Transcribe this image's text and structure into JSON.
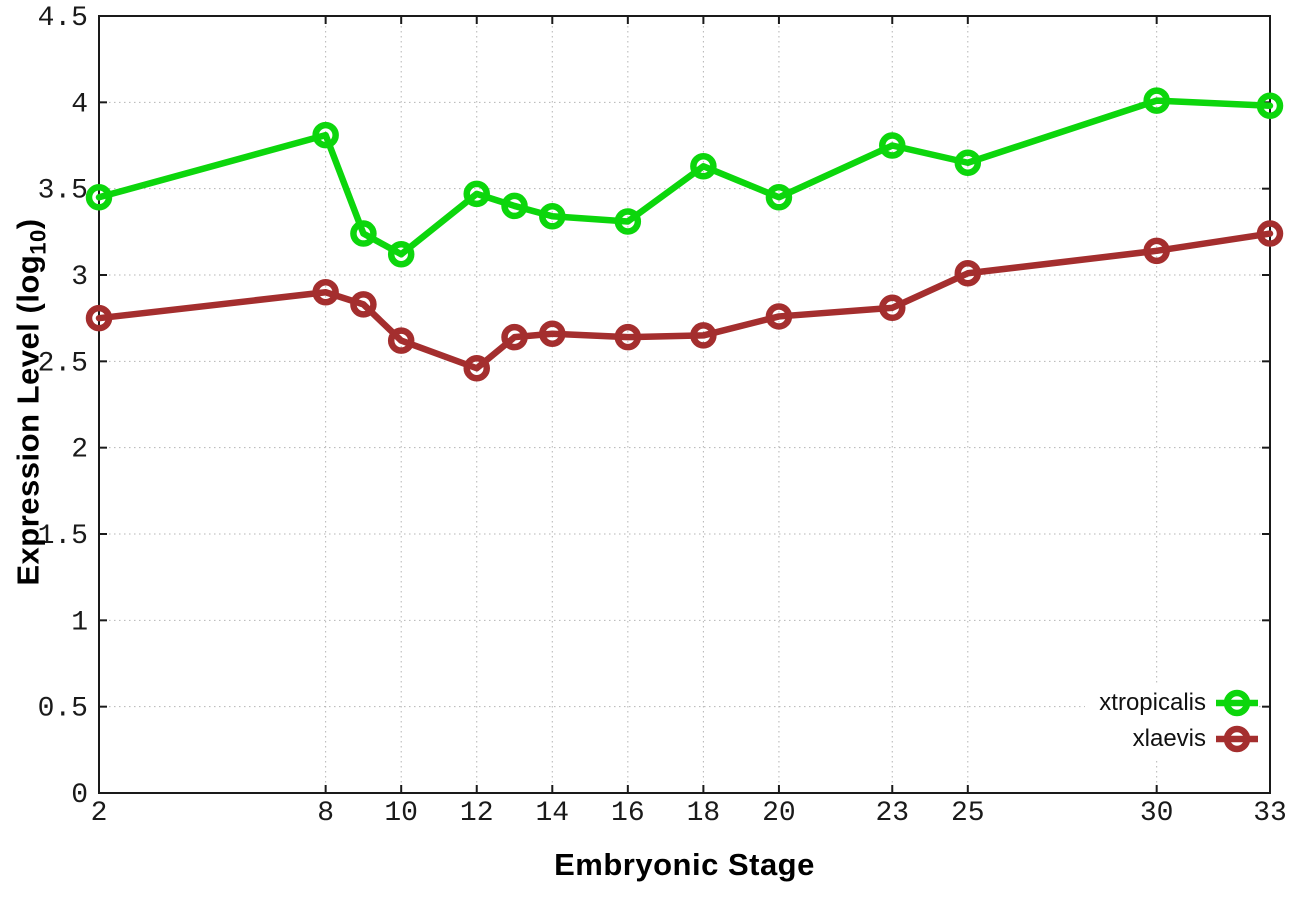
{
  "figure": {
    "ylabel_prefix": "Expression Level (log",
    "ylabel_sub": "10",
    "ylabel_suffix": ")"
  },
  "chart_data": {
    "type": "line",
    "title": "",
    "xlabel": "Embryonic Stage",
    "ylabel": "Expression Level (log10)",
    "x": [
      2,
      8,
      9,
      10,
      12,
      13,
      14,
      16,
      18,
      20,
      23,
      25,
      30,
      33
    ],
    "x_ticks": [
      2,
      8,
      10,
      12,
      14,
      16,
      18,
      20,
      23,
      25,
      30,
      33
    ],
    "x_tick_labels": [
      "2",
      "8",
      "10",
      "12",
      "14",
      "16",
      "18",
      "20",
      "23",
      "25",
      "30",
      "33"
    ],
    "y_ticks": [
      0,
      0.5,
      1,
      1.5,
      2,
      2.5,
      3,
      3.5,
      4,
      4.5
    ],
    "y_tick_labels": [
      "0",
      "0.5",
      "1",
      "1.5",
      "2",
      "2.5",
      "3",
      "3.5",
      "4",
      "4.5"
    ],
    "xlim": [
      2,
      33
    ],
    "ylim": [
      0,
      4.5
    ],
    "grid": true,
    "grid_style": "dotted",
    "legend_position": "bottom-right",
    "marker": "open-circle",
    "series": [
      {
        "name": "xtropicalis",
        "color": "#0cd60c",
        "values": [
          3.45,
          3.81,
          3.24,
          3.12,
          3.47,
          3.4,
          3.34,
          3.31,
          3.63,
          3.45,
          3.75,
          3.65,
          4.01,
          3.98
        ]
      },
      {
        "name": "xlaevis",
        "color": "#a42e2e",
        "values": [
          2.75,
          2.9,
          2.83,
          2.62,
          2.46,
          2.64,
          2.66,
          2.64,
          2.65,
          2.76,
          2.81,
          3.01,
          3.14,
          3.24
        ]
      }
    ],
    "axis_color": "#1a1a1a",
    "grid_color": "#b4b4b4"
  }
}
